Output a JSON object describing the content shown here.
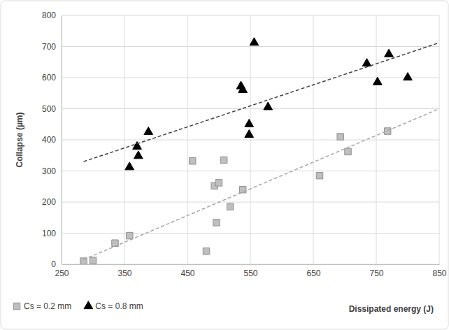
{
  "chart_data": {
    "type": "scatter",
    "x_label": "Dissipated energy (J)",
    "y_label": "Collapse (µm)",
    "xlim": [
      250,
      850
    ],
    "xticks": [
      250,
      350,
      450,
      550,
      650,
      750,
      850
    ],
    "ylim": [
      0,
      800
    ],
    "yticks": [
      0,
      100,
      200,
      300,
      400,
      500,
      600,
      700,
      800
    ],
    "grid": true,
    "legend": "bottom left",
    "series": [
      {
        "name": "Cs = 0.2 mm",
        "color": "#bfbfbf",
        "marker": "square",
        "x": [
          285,
          300,
          335,
          358,
          458,
          480,
          493,
          496,
          500,
          508,
          518,
          538,
          660,
          693,
          705,
          768
        ],
        "values": [
          10,
          12,
          68,
          92,
          332,
          42,
          252,
          134,
          262,
          335,
          185,
          240,
          285,
          410,
          362,
          428
        ]
      },
      {
        "name": "Cs = 0.8 mm",
        "color": "#000000",
        "marker": "triangle",
        "x": [
          358,
          370,
          372,
          388,
          535,
          538,
          548,
          548,
          556,
          578,
          735,
          752,
          770,
          800
        ],
        "values": [
          312,
          378,
          348,
          425,
          572,
          560,
          450,
          416,
          712,
          505,
          645,
          585,
          675,
          600
        ]
      },
      {
        "type": "line",
        "color": "#404040",
        "line_style": "dashed",
        "x": [
          285,
          850
        ],
        "values": [
          330,
          712
        ]
      },
      {
        "type": "line",
        "color": "#a6a6a6",
        "line_style": "dashed",
        "x": [
          285,
          850
        ],
        "values": [
          15,
          500
        ]
      }
    ]
  }
}
